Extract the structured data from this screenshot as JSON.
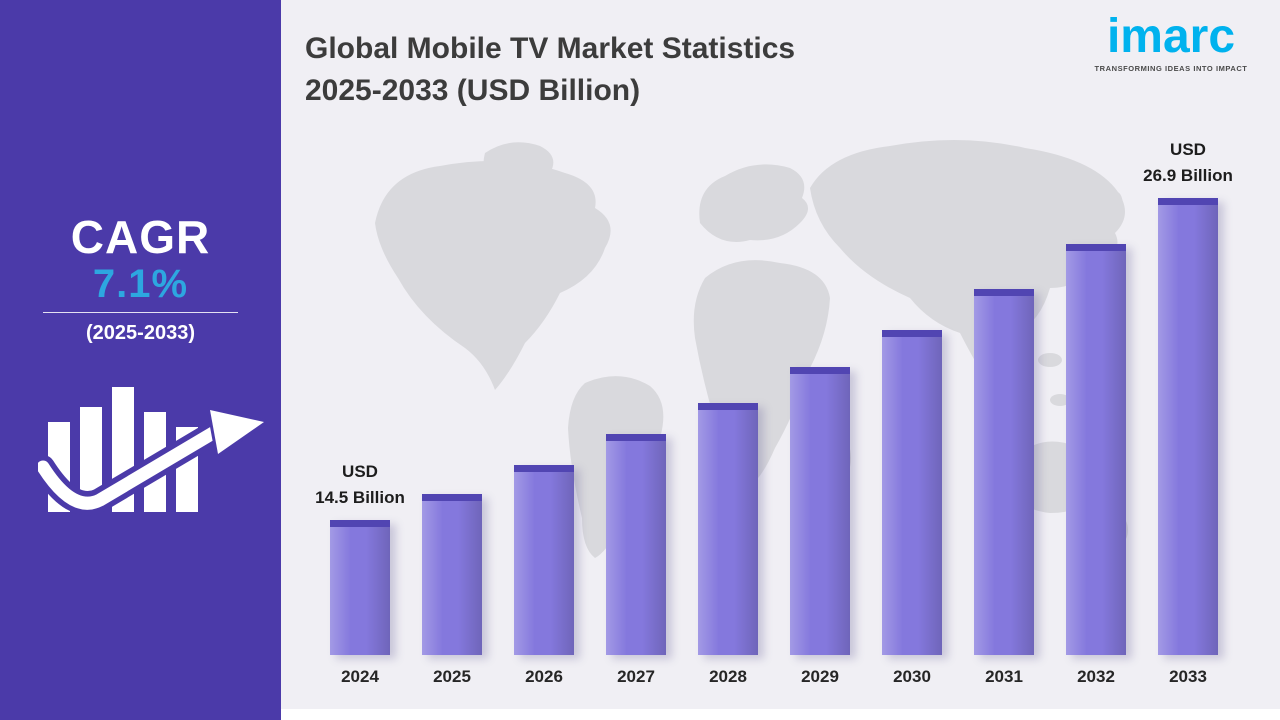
{
  "branding": {
    "logo": "imarc",
    "tagline": "TRANSFORMING IDEAS INTO IMPACT",
    "logo_color": "#00b2ee"
  },
  "sidebar": {
    "cagr_label": "CAGR",
    "cagr_value": "7.1%",
    "cagr_period": "(2025-2033)"
  },
  "title": {
    "line1": "Global Mobile TV Market Statistics",
    "line2": "2025-2033 (USD Billion)"
  },
  "chart_data": {
    "type": "bar",
    "title": "Global Mobile TV Market Statistics 2025-2033 (USD Billion)",
    "unit": "USD Billion",
    "categories": [
      "2024",
      "2025",
      "2026",
      "2027",
      "2028",
      "2029",
      "2030",
      "2031",
      "2032",
      "2033"
    ],
    "values": [
      14.5,
      15.5,
      16.6,
      17.8,
      19.0,
      20.4,
      21.8,
      23.4,
      25.1,
      26.9
    ],
    "annotations": [
      {
        "index": 0,
        "text": "USD\n14.5 Billion"
      },
      {
        "index": 9,
        "text": "USD\n26.9 Billion"
      }
    ],
    "xlabel": "",
    "ylabel": "",
    "ylim": [
      9.3,
      28
    ],
    "grid": false,
    "legend": "none",
    "bar_color": "#8478dd",
    "bar_cap_color": "#5145b2"
  },
  "colors": {
    "sidebar_bg": "#4b3aa9",
    "accent_blue": "#2da7e0",
    "page_bg": "#f0eff4",
    "map_gray": "#d9d9dd",
    "title_text": "#3c3c3c"
  }
}
